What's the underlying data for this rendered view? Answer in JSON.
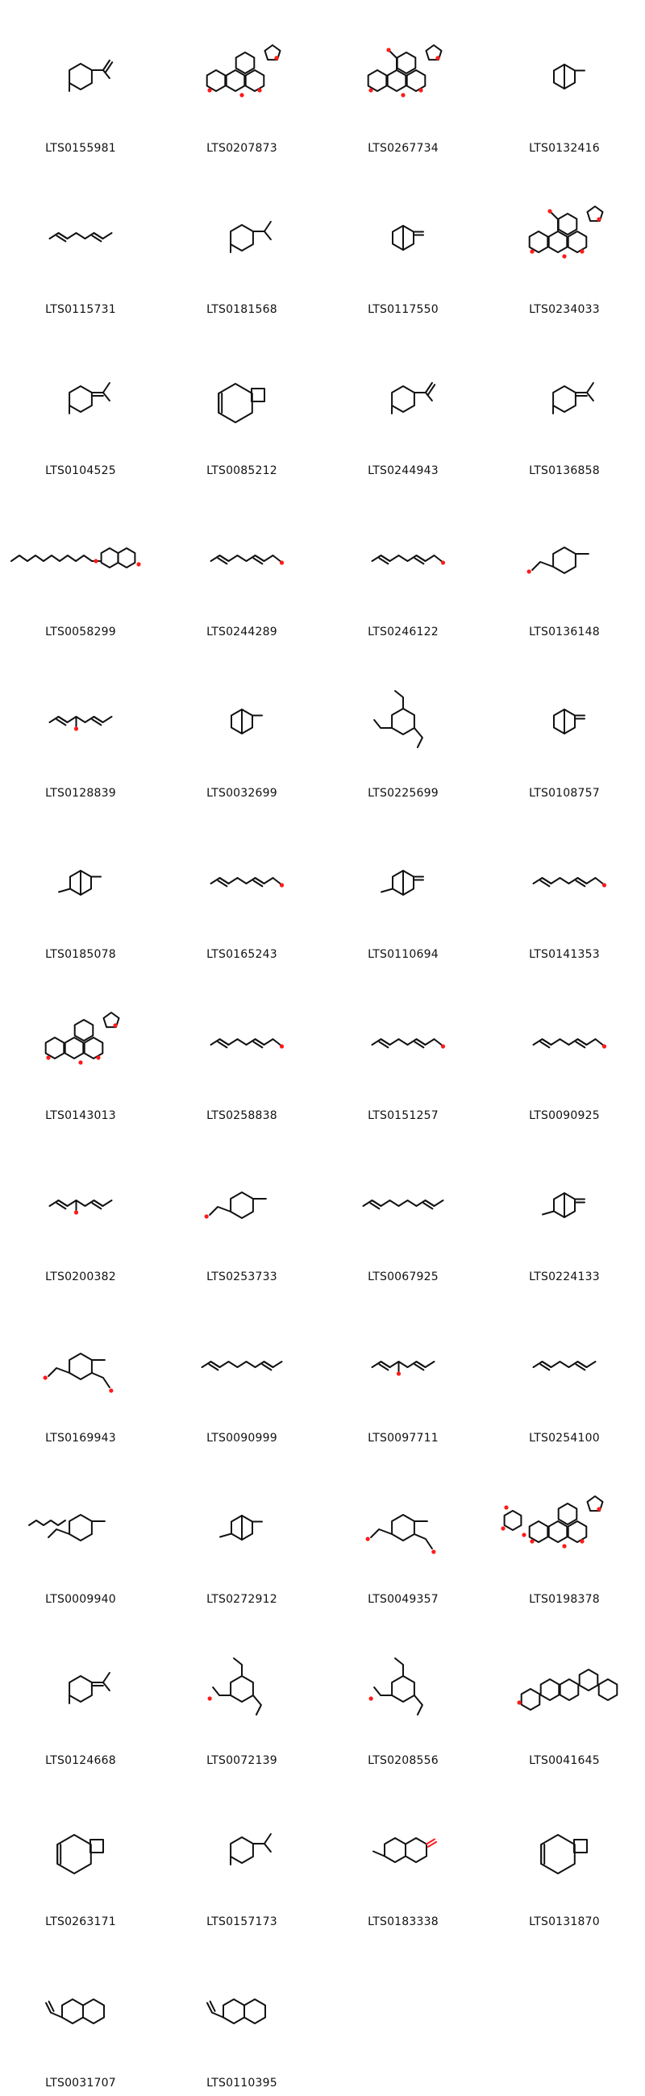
{
  "grid": {
    "columns": 4,
    "colors": {
      "bond": "#111111",
      "oxygen": "#ff1a1a",
      "label": "#111111",
      "background": "#ffffff"
    }
  },
  "molecules": [
    {
      "id": "LTS0155981",
      "shape": "ring-isopropenyl"
    },
    {
      "id": "LTS0207873",
      "shape": "limonoid-furan"
    },
    {
      "id": "LTS0267734",
      "shape": "limonoid-furan-acetate"
    },
    {
      "id": "LTS0132416",
      "shape": "bicyclic-cage"
    },
    {
      "id": "LTS0115731",
      "shape": "chain-diene"
    },
    {
      "id": "LTS0181568",
      "shape": "ring-isopropyl"
    },
    {
      "id": "LTS0117550",
      "shape": "bicyclic-methylene"
    },
    {
      "id": "LTS0234033",
      "shape": "limonoid-furan-acetate"
    },
    {
      "id": "LTS0104525",
      "shape": "ring-isopropylidene"
    },
    {
      "id": "LTS0085212",
      "shape": "macrocycle-cyclobutane"
    },
    {
      "id": "LTS0244943",
      "shape": "ring-isopropenyl"
    },
    {
      "id": "LTS0136858",
      "shape": "ring-isopropylidene"
    },
    {
      "id": "LTS0058299",
      "shape": "coumarin-ether"
    },
    {
      "id": "LTS0244289",
      "shape": "chain-alcohol"
    },
    {
      "id": "LTS0246122",
      "shape": "chain-aldehyde"
    },
    {
      "id": "LTS0136148",
      "shape": "ring-tertiary-alcohol"
    },
    {
      "id": "LTS0128839",
      "shape": "chain-tertiary-alcohol"
    },
    {
      "id": "LTS0032699",
      "shape": "bicyclic-cage"
    },
    {
      "id": "LTS0225699",
      "shape": "cyclohexane-trisubstituted"
    },
    {
      "id": "LTS0108757",
      "shape": "bicyclic-methylene"
    },
    {
      "id": "LTS0185078",
      "shape": "bicyclic-cyclopropane"
    },
    {
      "id": "LTS0165243",
      "shape": "chain-aldehyde"
    },
    {
      "id": "LTS0110694",
      "shape": "bicyclic-cyclopropane-methylene"
    },
    {
      "id": "LTS0141353",
      "shape": "chain-aldehyde"
    },
    {
      "id": "LTS0143013",
      "shape": "limonoid-furan"
    },
    {
      "id": "LTS0258838",
      "shape": "chain-alcohol"
    },
    {
      "id": "LTS0151257",
      "shape": "chain-aldehyde"
    },
    {
      "id": "LTS0090925",
      "shape": "chain-alcohol"
    },
    {
      "id": "LTS0200382",
      "shape": "chain-tertiary-alcohol"
    },
    {
      "id": "LTS0253733",
      "shape": "ring-hydroxy-isopropyl"
    },
    {
      "id": "LTS0067925",
      "shape": "chain-triene"
    },
    {
      "id": "LTS0224133",
      "shape": "bicyclic-cyclopropane-methylene"
    },
    {
      "id": "LTS0169943",
      "shape": "ring-acetate-isopropenyl"
    },
    {
      "id": "LTS0090999",
      "shape": "chain-triene"
    },
    {
      "id": "LTS0097711",
      "shape": "chain-hydroxy-diene"
    },
    {
      "id": "LTS0254100",
      "shape": "chain-diene"
    },
    {
      "id": "LTS0009940",
      "shape": "ring-chain"
    },
    {
      "id": "LTS0272912",
      "shape": "bicyclic-cyclopropane"
    },
    {
      "id": "LTS0049357",
      "shape": "ring-acetate-isopropenyl"
    },
    {
      "id": "LTS0198378",
      "shape": "glycoside-limonoid"
    },
    {
      "id": "LTS0124668",
      "shape": "ring-isopropyl-methylene"
    },
    {
      "id": "LTS0072139",
      "shape": "cyclohexane-hydroxy"
    },
    {
      "id": "LTS0208556",
      "shape": "cyclohexane-hydroxy"
    },
    {
      "id": "LTS0041645",
      "shape": "steroid-pentacyclic"
    },
    {
      "id": "LTS0263171",
      "shape": "tricyclic-bridged"
    },
    {
      "id": "LTS0157173",
      "shape": "ring-isopropyl"
    },
    {
      "id": "LTS0183338",
      "shape": "decalin-ketone"
    },
    {
      "id": "LTS0131870",
      "shape": "macrocycle-cyclobutane"
    },
    {
      "id": "LTS0031707",
      "shape": "decalin-isopropenyl"
    },
    {
      "id": "LTS0110395",
      "shape": "decalin-vinyl"
    }
  ]
}
